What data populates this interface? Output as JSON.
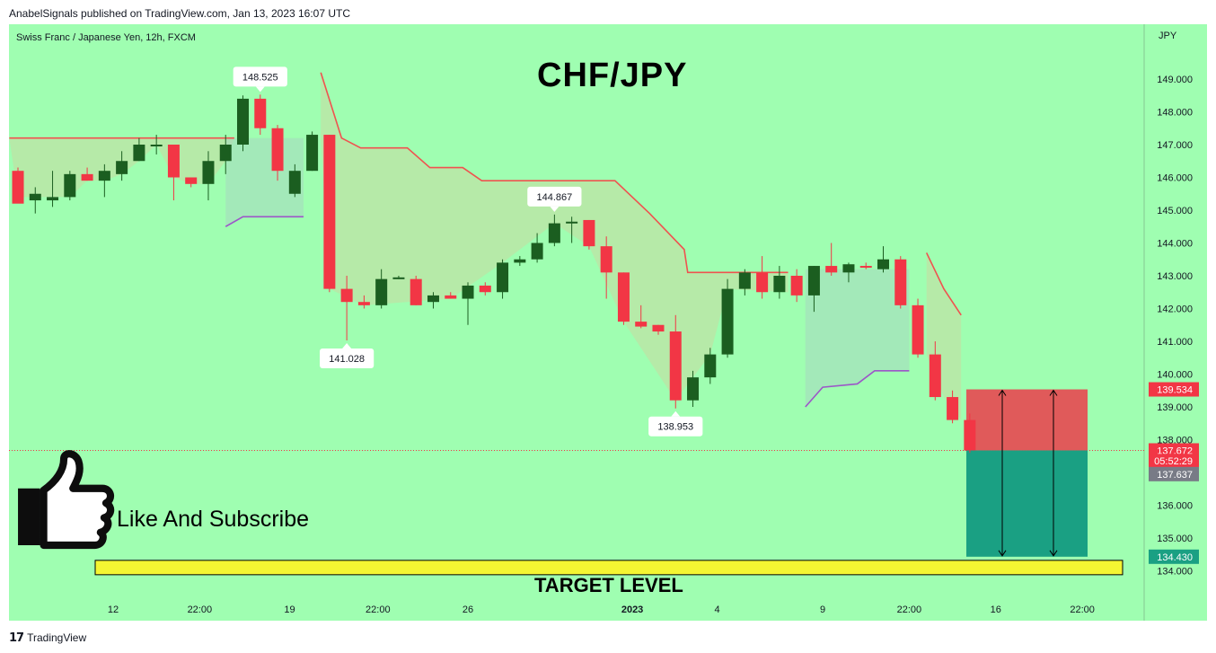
{
  "publisher": "AnabelSignals published on TradingView.com, Jan 13, 2023 16:07 UTC",
  "symbol_line": "Swiss Franc / Japanese Yen, 12h, FXCM",
  "currency": "JPY",
  "big_title": "CHF/JPY",
  "like_text": "Like And Subscribe",
  "target_text": "TARGET LEVEL",
  "footer_brand": "TradingView",
  "icons": [
    "thumbs-up-icon",
    "tradingview-logo-icon"
  ],
  "colors": {
    "background": "#9ffeb1",
    "bull": "#1b5e20",
    "bear": "#f23645",
    "stop_zone": "#e05a5a",
    "target_zone": "#1aa083",
    "target_bar": "#f5f532",
    "upper_trail": "#f0524f",
    "lower_trail": "#9c56c8"
  },
  "price_axis": {
    "ticks": [
      "149.000",
      "148.000",
      "147.000",
      "146.000",
      "145.000",
      "144.000",
      "143.000",
      "142.000",
      "141.000",
      "140.000",
      "139.000",
      "138.000",
      "136.000",
      "135.000",
      "134.000"
    ]
  },
  "price_tags": [
    {
      "label": "139.534",
      "value": 139.534,
      "color": "#f23645"
    },
    {
      "label": "137.672",
      "value": 137.672,
      "color": "#f23645"
    },
    {
      "label": "05:52:29",
      "value": 137.35,
      "color": "#f23645"
    },
    {
      "label": "137.637",
      "value": 136.95,
      "color": "#787b86"
    },
    {
      "label": "134.430",
      "value": 134.43,
      "color": "#1aa083"
    }
  ],
  "time_axis": [
    {
      "label": "12",
      "i": 5.5
    },
    {
      "label": "22:00",
      "i": 10.5
    },
    {
      "label": "19",
      "i": 15.7
    },
    {
      "label": "22:00",
      "i": 20.8
    },
    {
      "label": "26",
      "i": 26.0
    },
    {
      "label": "2023",
      "i": 35.5,
      "bold": true
    },
    {
      "label": "4",
      "i": 40.4
    },
    {
      "label": "9",
      "i": 46.5
    },
    {
      "label": "22:00",
      "i": 51.5
    },
    {
      "label": "16",
      "i": 56.5
    },
    {
      "label": "22:00",
      "i": 61.5
    }
  ],
  "chart_data": {
    "type": "candlestick",
    "title": "CHF/JPY",
    "ylabel": "JPY",
    "ylim": [
      133.8,
      150.0
    ],
    "candles": [
      {
        "i": 0,
        "o": 146.2,
        "h": 146.3,
        "l": 145.3,
        "c": 145.2
      },
      {
        "i": 1,
        "o": 145.3,
        "h": 145.7,
        "l": 144.9,
        "c": 145.5
      },
      {
        "i": 2,
        "o": 145.3,
        "h": 146.2,
        "l": 145.1,
        "c": 145.4
      },
      {
        "i": 3,
        "o": 145.4,
        "h": 146.2,
        "l": 145.3,
        "c": 146.1
      },
      {
        "i": 4,
        "o": 146.1,
        "h": 146.3,
        "l": 145.9,
        "c": 145.9
      },
      {
        "i": 5,
        "o": 145.9,
        "h": 146.4,
        "l": 145.4,
        "c": 146.2
      },
      {
        "i": 6,
        "o": 146.1,
        "h": 146.8,
        "l": 145.9,
        "c": 146.5
      },
      {
        "i": 7,
        "o": 146.5,
        "h": 147.2,
        "l": 146.5,
        "c": 147.0
      },
      {
        "i": 8,
        "o": 147.0,
        "h": 147.3,
        "l": 146.7,
        "c": 147.0
      },
      {
        "i": 9,
        "o": 147.0,
        "h": 147.0,
        "l": 145.3,
        "c": 146.0
      },
      {
        "i": 10,
        "o": 146.0,
        "h": 146.0,
        "l": 145.7,
        "c": 145.8
      },
      {
        "i": 11,
        "o": 145.8,
        "h": 146.8,
        "l": 145.3,
        "c": 146.5
      },
      {
        "i": 12,
        "o": 146.5,
        "h": 147.3,
        "l": 146.1,
        "c": 147.0
      },
      {
        "i": 13,
        "o": 147.0,
        "h": 148.5,
        "l": 146.8,
        "c": 148.4
      },
      {
        "i": 14,
        "o": 148.4,
        "h": 148.525,
        "l": 147.3,
        "c": 147.5
      },
      {
        "i": 15,
        "o": 147.5,
        "h": 147.6,
        "l": 145.9,
        "c": 146.2
      },
      {
        "i": 16,
        "o": 145.5,
        "h": 146.4,
        "l": 145.4,
        "c": 146.2
      },
      {
        "i": 17,
        "o": 146.2,
        "h": 147.4,
        "l": 146.2,
        "c": 147.3
      },
      {
        "i": 18,
        "o": 147.3,
        "h": 147.3,
        "l": 142.5,
        "c": 142.6
      },
      {
        "i": 19,
        "o": 142.6,
        "h": 143.0,
        "l": 141.028,
        "c": 142.2
      },
      {
        "i": 20,
        "o": 142.2,
        "h": 142.4,
        "l": 142.0,
        "c": 142.1
      },
      {
        "i": 21,
        "o": 142.1,
        "h": 143.2,
        "l": 142.0,
        "c": 142.9
      },
      {
        "i": 22,
        "o": 142.9,
        "h": 143.0,
        "l": 142.9,
        "c": 142.95
      },
      {
        "i": 23,
        "o": 142.9,
        "h": 143.0,
        "l": 142.1,
        "c": 142.1
      },
      {
        "i": 24,
        "o": 142.2,
        "h": 142.5,
        "l": 142.0,
        "c": 142.4
      },
      {
        "i": 25,
        "o": 142.4,
        "h": 142.5,
        "l": 142.3,
        "c": 142.3
      },
      {
        "i": 26,
        "o": 142.3,
        "h": 142.8,
        "l": 141.5,
        "c": 142.7
      },
      {
        "i": 27,
        "o": 142.7,
        "h": 142.8,
        "l": 142.4,
        "c": 142.5
      },
      {
        "i": 28,
        "o": 142.5,
        "h": 143.5,
        "l": 142.3,
        "c": 143.4
      },
      {
        "i": 29,
        "o": 143.4,
        "h": 143.6,
        "l": 143.3,
        "c": 143.5
      },
      {
        "i": 30,
        "o": 143.5,
        "h": 144.3,
        "l": 143.4,
        "c": 144.0
      },
      {
        "i": 31,
        "o": 144.0,
        "h": 144.867,
        "l": 143.9,
        "c": 144.6
      },
      {
        "i": 32,
        "o": 144.6,
        "h": 144.8,
        "l": 144.0,
        "c": 144.65
      },
      {
        "i": 33,
        "o": 144.7,
        "h": 144.7,
        "l": 143.8,
        "c": 143.9
      },
      {
        "i": 34,
        "o": 143.9,
        "h": 144.2,
        "l": 142.3,
        "c": 143.1
      },
      {
        "i": 35,
        "o": 143.1,
        "h": 143.1,
        "l": 141.5,
        "c": 141.6
      },
      {
        "i": 36,
        "o": 141.6,
        "h": 142.1,
        "l": 141.4,
        "c": 141.45
      },
      {
        "i": 37,
        "o": 141.5,
        "h": 141.5,
        "l": 141.2,
        "c": 141.3
      },
      {
        "i": 38,
        "o": 141.3,
        "h": 141.8,
        "l": 138.953,
        "c": 139.2
      },
      {
        "i": 39,
        "o": 139.2,
        "h": 140.1,
        "l": 139.0,
        "c": 139.9
      },
      {
        "i": 40,
        "o": 139.9,
        "h": 140.8,
        "l": 139.7,
        "c": 140.6
      },
      {
        "i": 41,
        "o": 140.6,
        "h": 142.9,
        "l": 140.5,
        "c": 142.6
      },
      {
        "i": 42,
        "o": 142.6,
        "h": 143.2,
        "l": 142.4,
        "c": 143.1
      },
      {
        "i": 43,
        "o": 143.1,
        "h": 143.6,
        "l": 142.3,
        "c": 142.5
      },
      {
        "i": 44,
        "o": 142.5,
        "h": 143.3,
        "l": 142.3,
        "c": 143.0
      },
      {
        "i": 45,
        "o": 143.0,
        "h": 143.2,
        "l": 142.2,
        "c": 142.4
      },
      {
        "i": 46,
        "o": 142.4,
        "h": 143.3,
        "l": 141.9,
        "c": 143.3
      },
      {
        "i": 47,
        "o": 143.3,
        "h": 144.0,
        "l": 143.0,
        "c": 143.1
      },
      {
        "i": 48,
        "o": 143.1,
        "h": 143.4,
        "l": 142.8,
        "c": 143.35
      },
      {
        "i": 49,
        "o": 143.3,
        "h": 143.4,
        "l": 143.2,
        "c": 143.25
      },
      {
        "i": 50,
        "o": 143.2,
        "h": 143.9,
        "l": 143.1,
        "c": 143.5
      },
      {
        "i": 51,
        "o": 143.5,
        "h": 143.6,
        "l": 142.0,
        "c": 142.1
      },
      {
        "i": 52,
        "o": 142.1,
        "h": 142.3,
        "l": 140.5,
        "c": 140.6
      },
      {
        "i": 53,
        "o": 140.6,
        "h": 141.0,
        "l": 139.2,
        "c": 139.3
      },
      {
        "i": 54,
        "o": 139.3,
        "h": 139.5,
        "l": 138.5,
        "c": 138.6
      },
      {
        "i": 55,
        "o": 138.6,
        "h": 138.8,
        "l": 137.6,
        "c": 137.672
      }
    ],
    "upper_trail": [
      {
        "segment": 1,
        "points": [
          [
            -0.5,
            147.2
          ],
          [
            12.5,
            147.2
          ]
        ]
      },
      {
        "segment": 2,
        "points": [
          [
            17.5,
            149.2
          ],
          [
            18.7,
            147.2
          ],
          [
            19.8,
            146.9
          ],
          [
            22.5,
            146.9
          ],
          [
            23.8,
            146.3
          ],
          [
            25.7,
            146.3
          ],
          [
            26.8,
            145.9
          ],
          [
            34.5,
            145.9
          ],
          [
            36.5,
            144.9
          ],
          [
            38.5,
            143.8
          ],
          [
            38.7,
            143.1
          ],
          [
            44.5,
            143.1
          ]
        ]
      },
      {
        "segment": 3,
        "points": [
          [
            52.5,
            143.7
          ],
          [
            53.5,
            142.6
          ],
          [
            54.5,
            141.8
          ]
        ]
      }
    ],
    "lower_trail": [
      {
        "segment": 1,
        "points": [
          [
            12,
            144.5
          ],
          [
            13,
            144.8
          ],
          [
            16.5,
            144.8
          ]
        ]
      },
      {
        "segment": 2,
        "points": [
          [
            45.5,
            139.0
          ],
          [
            46.5,
            139.6
          ],
          [
            48.5,
            139.7
          ],
          [
            49.5,
            140.1
          ],
          [
            51.5,
            140.1
          ]
        ]
      }
    ],
    "annotations": [
      {
        "label": "148.525",
        "i": 14,
        "value": 148.525,
        "pos": "above"
      },
      {
        "label": "141.028",
        "i": 19,
        "value": 141.028,
        "pos": "below"
      },
      {
        "label": "144.867",
        "i": 31,
        "value": 144.867,
        "pos": "above"
      },
      {
        "label": "138.953",
        "i": 38,
        "value": 138.953,
        "pos": "below"
      }
    ],
    "position": {
      "entry": 137.672,
      "stop": 139.534,
      "target": 134.43
    },
    "target_level": 134.1,
    "current_price_line": 137.672
  }
}
